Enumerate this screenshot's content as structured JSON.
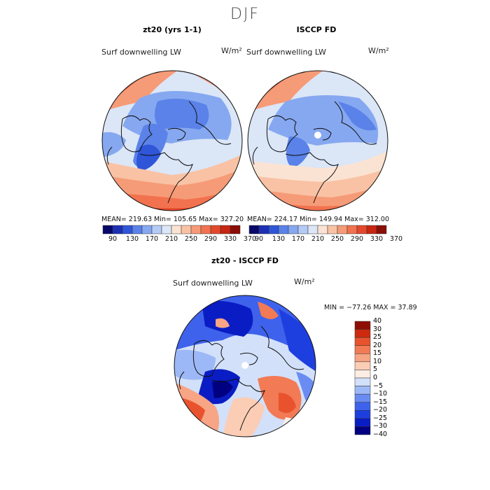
{
  "season": "DJF",
  "panels": [
    {
      "title": "zt20 (yrs 1-1)",
      "variable": "Surf downwelling LW",
      "units": "W/m²",
      "stats": "MEAN= 219.63   Min= 105.65   Max= 327.20"
    },
    {
      "title": "ISCCP FD",
      "variable": "Surf downwelling LW",
      "units": "W/m²",
      "stats": "MEAN= 224.17   Min= 149.94   Max= 312.00"
    },
    {
      "title": "zt20 - ISCCP FD",
      "variable": "Surf downwelling LW",
      "units": "W/m²",
      "stats": "MIN = −77.26  MAX =  37.89"
    }
  ],
  "top_colorbar": {
    "colors": [
      "#08086b",
      "#1c2fb5",
      "#2f55d8",
      "#5a82e8",
      "#86a8f0",
      "#b3cbf5",
      "#dbe6f7",
      "#fbe3d3",
      "#f9c2a4",
      "#f69b77",
      "#f2724f",
      "#e4482b",
      "#c72612",
      "#8a0d06"
    ],
    "tick_labels": [
      "90",
      "130",
      "170",
      "210",
      "250",
      "290",
      "330",
      "370"
    ]
  },
  "diff_colorbar": {
    "colors": [
      "#000080",
      "#0a1dc4",
      "#1e3fe0",
      "#3e62ec",
      "#6a8cf2",
      "#9db8f6",
      "#d2e0fa",
      "#fdeee4",
      "#fbcdb5",
      "#f7a584",
      "#f27a55",
      "#e8532e",
      "#cd2a10",
      "#8f0e03"
    ],
    "tick_labels": [
      "40",
      "30",
      "25",
      "20",
      "15",
      "10",
      "5",
      "0",
      "−5",
      "−10",
      "−15",
      "−20",
      "−25",
      "−30",
      "−40"
    ]
  },
  "colors": {
    "coastline": "#111111",
    "missing": "#ffffff"
  }
}
